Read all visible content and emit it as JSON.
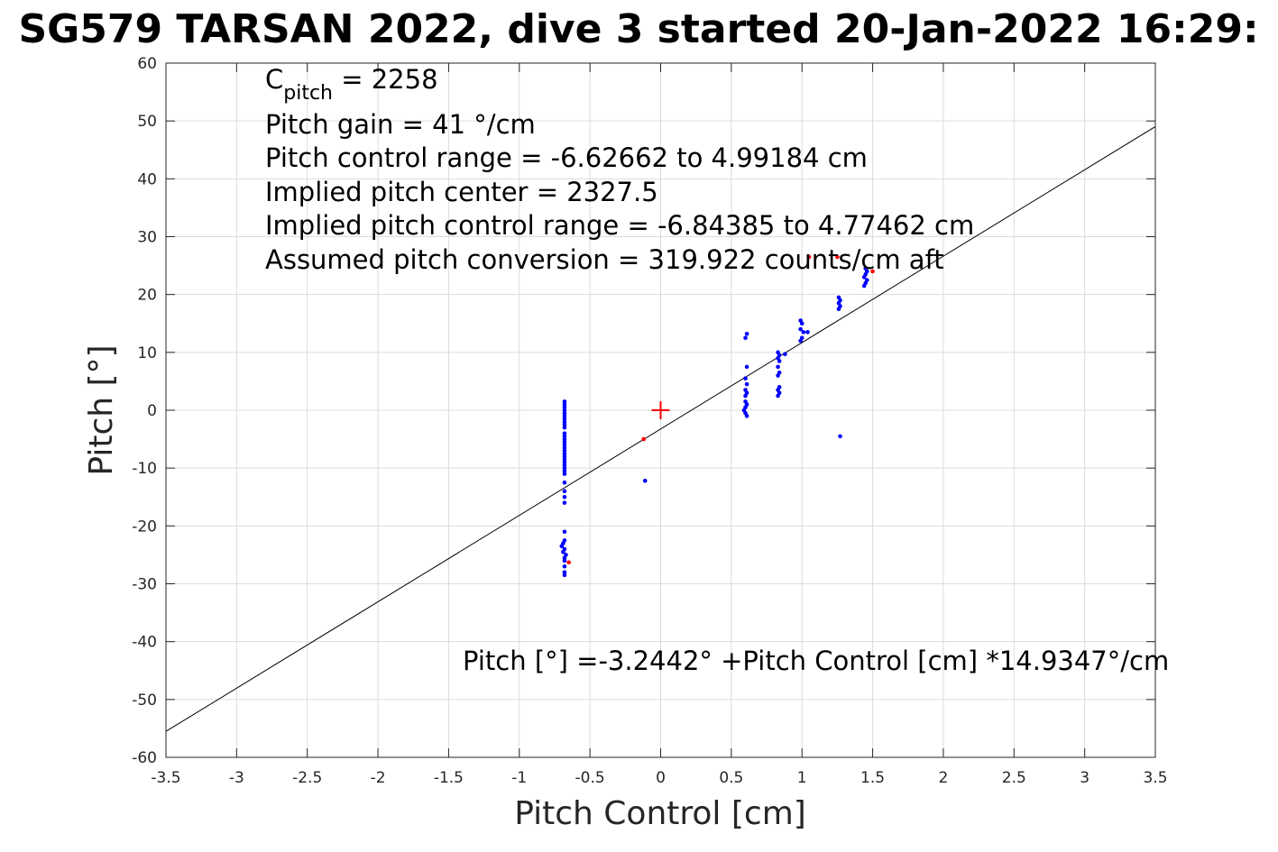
{
  "chart_data": {
    "type": "scatter",
    "title": "SG579 TARSAN 2022, dive 3 started 20-Jan-2022 16:29:",
    "xlabel": "Pitch Control [cm]",
    "ylabel": "Pitch [°]",
    "xlim": [
      -3.5,
      3.5
    ],
    "ylim": [
      -60,
      60
    ],
    "xticks": [
      -3.5,
      -3,
      -2.5,
      -2,
      -1.5,
      -1,
      -0.5,
      0,
      0.5,
      1,
      1.5,
      2,
      2.5,
      3,
      3.5
    ],
    "yticks": [
      -60,
      -50,
      -40,
      -30,
      -20,
      -10,
      0,
      10,
      20,
      30,
      40,
      50,
      60
    ],
    "xtick_labels": [
      "-3.5",
      "-3",
      "-2.5",
      "-2",
      "-1.5",
      "-1",
      "-0.5",
      "0",
      "0.5",
      "1",
      "1.5",
      "2",
      "2.5",
      "3",
      "3.5"
    ],
    "ytick_labels": [
      "-60",
      "-50",
      "-40",
      "-30",
      "-20",
      "-10",
      "0",
      "10",
      "20",
      "30",
      "40",
      "50",
      "60"
    ],
    "grid": true,
    "annotations": {
      "c_pitch_main": "C",
      "c_pitch_sub": "pitch",
      "c_pitch_value": " = 2258",
      "gain": "Pitch gain = 41 °/cm",
      "control_range": "Pitch control range = -6.62662 to 4.99184 cm",
      "implied_center": "Implied pitch center = 2327.5",
      "implied_range": "Implied pitch control range = -6.84385 to 4.77462 cm",
      "conversion": "Assumed pitch conversion = 319.922 counts/cm aft",
      "fit_equation": "Pitch [°] =-3.2442° +Pitch Control [cm] *14.9347°/cm"
    },
    "fit_line": {
      "intercept": -3.2442,
      "slope": 14.9347,
      "color": "#000000"
    },
    "center_marker": {
      "x": 0,
      "y": 0,
      "color": "#ff0000"
    },
    "series": [
      {
        "color": "#0000ff",
        "points": [
          [
            -0.68,
            1.5
          ],
          [
            -0.68,
            1.0
          ],
          [
            -0.68,
            0.5
          ],
          [
            -0.68,
            0.0
          ],
          [
            -0.68,
            -0.5
          ],
          [
            -0.68,
            -1.0
          ],
          [
            -0.68,
            -1.5
          ],
          [
            -0.68,
            -2.0
          ],
          [
            -0.68,
            -2.5
          ],
          [
            -0.68,
            -3.0
          ],
          [
            -0.68,
            -4.0
          ],
          [
            -0.68,
            -4.5
          ],
          [
            -0.68,
            -5.0
          ],
          [
            -0.68,
            -5.5
          ],
          [
            -0.68,
            -6.0
          ],
          [
            -0.68,
            -6.5
          ],
          [
            -0.68,
            -7.0
          ],
          [
            -0.68,
            -7.5
          ],
          [
            -0.68,
            -8.0
          ],
          [
            -0.68,
            -8.5
          ],
          [
            -0.68,
            -9.0
          ],
          [
            -0.68,
            -9.5
          ],
          [
            -0.68,
            -10.0
          ],
          [
            -0.68,
            -10.5
          ],
          [
            -0.68,
            -11.0
          ],
          [
            -0.68,
            -12.5
          ],
          [
            -0.68,
            -14.0
          ],
          [
            -0.68,
            -15.0
          ],
          [
            -0.68,
            -16.0
          ],
          [
            -0.68,
            -21.0
          ],
          [
            -0.68,
            -22.5
          ],
          [
            -0.69,
            -23.0
          ],
          [
            -0.7,
            -23.5
          ],
          [
            -0.68,
            -24.0
          ],
          [
            -0.69,
            -24.5
          ],
          [
            -0.67,
            -25.0
          ],
          [
            -0.68,
            -25.5
          ],
          [
            -0.68,
            -26.0
          ],
          [
            -0.68,
            -27.0
          ],
          [
            -0.68,
            -28.0
          ],
          [
            -0.68,
            -28.5
          ],
          [
            -0.11,
            -12.2
          ],
          [
            0.59,
            0.0
          ],
          [
            0.6,
            0.5
          ],
          [
            0.61,
            1.0
          ],
          [
            0.6,
            -0.5
          ],
          [
            0.61,
            -1.0
          ],
          [
            0.6,
            1.5
          ],
          [
            0.6,
            2.5
          ],
          [
            0.61,
            3.0
          ],
          [
            0.6,
            3.5
          ],
          [
            0.61,
            4.5
          ],
          [
            0.6,
            5.5
          ],
          [
            0.61,
            7.5
          ],
          [
            0.6,
            12.5
          ],
          [
            0.61,
            13.2
          ],
          [
            0.83,
            2.5
          ],
          [
            0.84,
            3.0
          ],
          [
            0.83,
            3.5
          ],
          [
            0.84,
            4.0
          ],
          [
            0.83,
            6.0
          ],
          [
            0.84,
            6.5
          ],
          [
            0.83,
            7.5
          ],
          [
            0.84,
            8.5
          ],
          [
            0.83,
            9.0
          ],
          [
            0.84,
            9.5
          ],
          [
            0.83,
            10.0
          ],
          [
            0.88,
            9.7
          ],
          [
            0.99,
            12.0
          ],
          [
            1.0,
            12.5
          ],
          [
            1.01,
            13.5
          ],
          [
            0.99,
            14.0
          ],
          [
            1.0,
            15.0
          ],
          [
            0.99,
            15.5
          ],
          [
            1.04,
            13.5
          ],
          [
            1.26,
            17.5
          ],
          [
            1.27,
            18.0
          ],
          [
            1.26,
            18.5
          ],
          [
            1.27,
            19.0
          ],
          [
            1.26,
            19.5
          ],
          [
            1.27,
            -4.5
          ],
          [
            1.44,
            21.5
          ],
          [
            1.45,
            22.0
          ],
          [
            1.46,
            22.5
          ],
          [
            1.44,
            23.0
          ],
          [
            1.45,
            23.5
          ],
          [
            1.46,
            24.0
          ],
          [
            1.45,
            24.5
          ]
        ]
      },
      {
        "color": "#ff0000",
        "points": [
          [
            -0.12,
            -5.0
          ],
          [
            -0.65,
            -26.3
          ],
          [
            1.05,
            26.5
          ],
          [
            1.25,
            26.5
          ],
          [
            1.5,
            24.0
          ]
        ]
      }
    ]
  }
}
